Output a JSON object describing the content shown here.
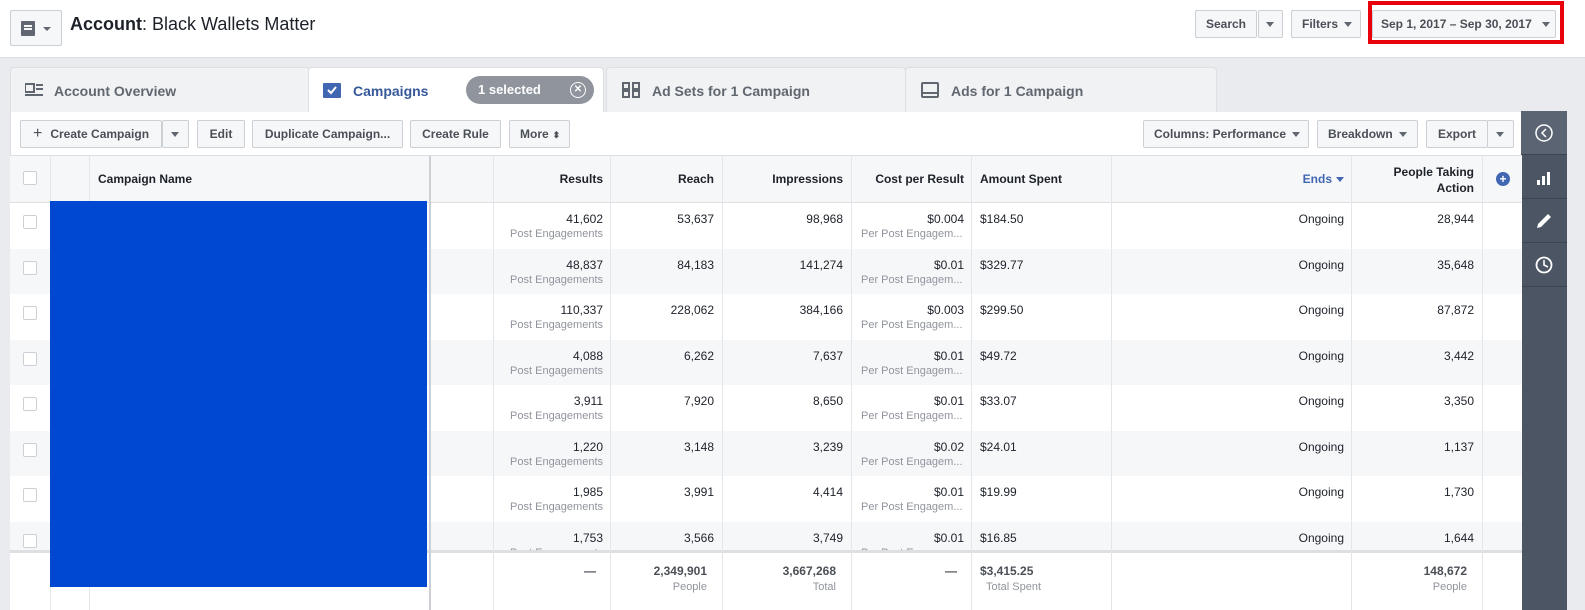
{
  "header": {
    "account_label": "Account",
    "account_name": ": Black Wallets Matter",
    "search": "Search",
    "filters": "Filters",
    "date_range": "Sep 1, 2017 – Sep 30, 2017"
  },
  "tabs": {
    "overview": "Account Overview",
    "campaigns": "Campaigns",
    "selected": "1 selected",
    "adsets": "Ad Sets for 1 Campaign",
    "ads": "Ads for 1 Campaign"
  },
  "toolbar": {
    "create": "Create Campaign",
    "edit": "Edit",
    "duplicate": "Duplicate Campaign...",
    "create_rule": "Create Rule",
    "more": "More",
    "columns": "Columns: Performance",
    "breakdown": "Breakdown",
    "export": "Export"
  },
  "columns": {
    "name": "Campaign Name",
    "results": "Results",
    "reach": "Reach",
    "impressions": "Impressions",
    "cpr": "Cost per Result",
    "spent": "Amount Spent",
    "ends": "Ends",
    "people1": "People Taking",
    "people2": "Action"
  },
  "rows": [
    {
      "results": "41,602",
      "rtype": "Post Engagements",
      "reach": "53,637",
      "impr": "98,968",
      "cpr": "$0.004",
      "cprtype": "Per Post Engagem...",
      "spent": "$184.50",
      "ends": "Ongoing",
      "people": "28,944"
    },
    {
      "results": "48,837",
      "rtype": "Post Engagements",
      "reach": "84,183",
      "impr": "141,274",
      "cpr": "$0.01",
      "cprtype": "Per Post Engagem...",
      "spent": "$329.77",
      "ends": "Ongoing",
      "people": "35,648"
    },
    {
      "results": "110,337",
      "rtype": "Post Engagements",
      "reach": "228,062",
      "impr": "384,166",
      "cpr": "$0.003",
      "cprtype": "Per Post Engagem...",
      "spent": "$299.50",
      "ends": "Ongoing",
      "people": "87,872"
    },
    {
      "results": "4,088",
      "rtype": "Post Engagements",
      "reach": "6,262",
      "impr": "7,637",
      "cpr": "$0.01",
      "cprtype": "Per Post Engagem...",
      "spent": "$49.72",
      "ends": "Ongoing",
      "people": "3,442"
    },
    {
      "results": "3,911",
      "rtype": "Post Engagements",
      "reach": "7,920",
      "impr": "8,650",
      "cpr": "$0.01",
      "cprtype": "Per Post Engagem...",
      "spent": "$33.07",
      "ends": "Ongoing",
      "people": "3,350"
    },
    {
      "results": "1,220",
      "rtype": "Post Engagements",
      "reach": "3,148",
      "impr": "3,239",
      "cpr": "$0.02",
      "cprtype": "Per Post Engagem...",
      "spent": "$24.01",
      "ends": "Ongoing",
      "people": "1,137"
    },
    {
      "results": "1,985",
      "rtype": "Post Engagements",
      "reach": "3,991",
      "impr": "4,414",
      "cpr": "$0.01",
      "cprtype": "Per Post Engagem...",
      "spent": "$19.99",
      "ends": "Ongoing",
      "people": "1,730"
    },
    {
      "results": "1,753",
      "rtype": "Post Engagements",
      "reach": "3,566",
      "impr": "3,749",
      "cpr": "$0.01",
      "cprtype": "Per Post Engagem...",
      "spent": "$16.85",
      "ends": "Ongoing",
      "people": "1,644"
    }
  ],
  "totals": {
    "results": "—",
    "reach": "2,349,901",
    "reach_sub": "People",
    "impr": "3,667,268",
    "impr_sub": "Total",
    "cpr": "—",
    "spent": "$3,415.25",
    "spent_sub": "Total Spent",
    "people": "148,672",
    "people_sub": "People"
  }
}
